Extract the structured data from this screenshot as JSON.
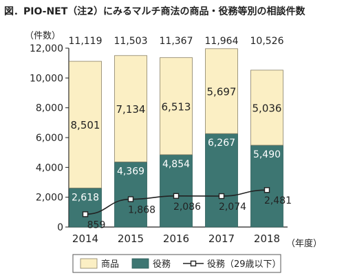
{
  "figure_title": "図．PIO-NET（注2）にみるマルチ商法の商品・役務等別の相談件数",
  "chart_data": {
    "type": "bar",
    "stacked": true,
    "title": "",
    "ylabel": "（件数）",
    "xlabel": "（年度）",
    "ylim": [
      0,
      12000
    ],
    "yticks": [
      0,
      2000,
      4000,
      6000,
      8000,
      10000,
      12000
    ],
    "ytick_labels": [
      "0",
      "2,000",
      "4,000",
      "6,000",
      "8,000",
      "10,000",
      "12,000"
    ],
    "categories": [
      "2014",
      "2015",
      "2016",
      "2017",
      "2018"
    ],
    "totals": [
      11119,
      11503,
      11367,
      11964,
      10526
    ],
    "total_labels": [
      "11,119",
      "11,503",
      "11,367",
      "11,964",
      "10,526"
    ],
    "series": [
      {
        "name": "役務",
        "type": "bar",
        "values": [
          2618,
          4369,
          4854,
          6267,
          5490
        ],
        "labels": [
          "2,618",
          "4,369",
          "4,854",
          "6,267",
          "5,490"
        ],
        "color": "#3d7672"
      },
      {
        "name": "商品",
        "type": "bar",
        "values": [
          8501,
          7134,
          6513,
          5697,
          5036
        ],
        "labels": [
          "8,501",
          "7,134",
          "6,513",
          "5,697",
          "5,036"
        ],
        "color": "#fbefc4"
      },
      {
        "name": "役務（29歳以下）",
        "type": "line",
        "values": [
          859,
          1868,
          2086,
          2074,
          2481
        ],
        "labels": [
          "859",
          "1,868",
          "2,086",
          "2,074",
          "2,481"
        ],
        "color": "#222222"
      }
    ],
    "legend_order": [
      "商品",
      "役務",
      "役務（29歳以下）"
    ],
    "legend_position": "bottom",
    "grid": false
  }
}
